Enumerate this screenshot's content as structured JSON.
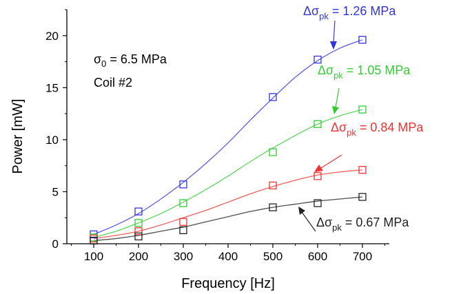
{
  "chart_data": {
    "type": "scatter",
    "xlabel": "Frequency [Hz]",
    "ylabel": "Power [mW]",
    "xlim": [
      40,
      760
    ],
    "ylim": [
      0,
      22.5
    ],
    "xticks": [
      100,
      200,
      300,
      400,
      500,
      600,
      700
    ],
    "yticks": [
      0,
      5,
      10,
      15,
      20
    ],
    "grid": false,
    "series": [
      {
        "name": "1.26 MPa",
        "color": "#3333dd",
        "x": [
          100,
          200,
          300,
          500,
          600,
          700
        ],
        "y": [
          0.9,
          3.1,
          5.7,
          14.1,
          17.7,
          19.6
        ],
        "fit": [
          [
            100,
            0.9
          ],
          [
            150,
            1.8
          ],
          [
            200,
            2.9
          ],
          [
            250,
            4.3
          ],
          [
            300,
            5.9
          ],
          [
            350,
            7.7
          ],
          [
            400,
            9.7
          ],
          [
            450,
            11.9
          ],
          [
            500,
            14.0
          ],
          [
            550,
            16.0
          ],
          [
            600,
            17.6
          ],
          [
            650,
            18.8
          ],
          [
            700,
            19.6
          ]
        ]
      },
      {
        "name": "1.05 MPa",
        "color": "#33cc33",
        "x": [
          100,
          200,
          300,
          500,
          600,
          700
        ],
        "y": [
          0.6,
          2.0,
          3.9,
          8.8,
          11.5,
          12.9
        ],
        "fit": [
          [
            100,
            0.6
          ],
          [
            150,
            1.2
          ],
          [
            200,
            2.0
          ],
          [
            250,
            2.9
          ],
          [
            300,
            4.0
          ],
          [
            350,
            5.2
          ],
          [
            400,
            6.5
          ],
          [
            450,
            7.9
          ],
          [
            500,
            9.2
          ],
          [
            550,
            10.4
          ],
          [
            600,
            11.5
          ],
          [
            650,
            12.3
          ],
          [
            700,
            12.9
          ]
        ]
      },
      {
        "name": "0.84 MPa",
        "color": "#ee3333",
        "x": [
          100,
          200,
          300,
          500,
          600,
          700
        ],
        "y": [
          0.5,
          1.2,
          2.1,
          5.6,
          6.5,
          7.1
        ],
        "fit": [
          [
            100,
            0.5
          ],
          [
            150,
            0.8
          ],
          [
            200,
            1.2
          ],
          [
            250,
            1.8
          ],
          [
            300,
            2.5
          ],
          [
            350,
            3.2
          ],
          [
            400,
            4.0
          ],
          [
            450,
            4.8
          ],
          [
            500,
            5.5
          ],
          [
            550,
            6.1
          ],
          [
            600,
            6.6
          ],
          [
            650,
            6.9
          ],
          [
            700,
            7.1
          ]
        ]
      },
      {
        "name": "0.67 MPa",
        "color": "#222222",
        "x": [
          100,
          200,
          300,
          500,
          600,
          700
        ],
        "y": [
          0.3,
          0.7,
          1.3,
          3.5,
          3.9,
          4.5
        ],
        "fit": [
          [
            100,
            0.3
          ],
          [
            150,
            0.5
          ],
          [
            200,
            0.8
          ],
          [
            250,
            1.2
          ],
          [
            300,
            1.6
          ],
          [
            350,
            2.1
          ],
          [
            400,
            2.6
          ],
          [
            450,
            3.1
          ],
          [
            500,
            3.5
          ],
          [
            550,
            3.8
          ],
          [
            600,
            4.1
          ],
          [
            650,
            4.3
          ],
          [
            700,
            4.5
          ]
        ]
      }
    ],
    "annotations": {
      "sigma0": {
        "symbol": "σ",
        "sub": "0",
        "text": " = 6.5 MPa"
      },
      "coil": "Coil #2",
      "series_labels": [
        {
          "prefix": "Δσ",
          "sub": "pk",
          "text": " = 1.26 MPa",
          "color": "#3333dd"
        },
        {
          "prefix": "Δσ",
          "sub": "pk",
          "text": " = 1.05 MPa",
          "color": "#33cc33"
        },
        {
          "prefix": "Δσ",
          "sub": "pk",
          "text": " = 0.84 MPa",
          "color": "#ee3333"
        },
        {
          "prefix": "Δσ",
          "sub": "pk",
          "text": " = 0.67 MPa",
          "color": "#222222"
        }
      ]
    }
  }
}
